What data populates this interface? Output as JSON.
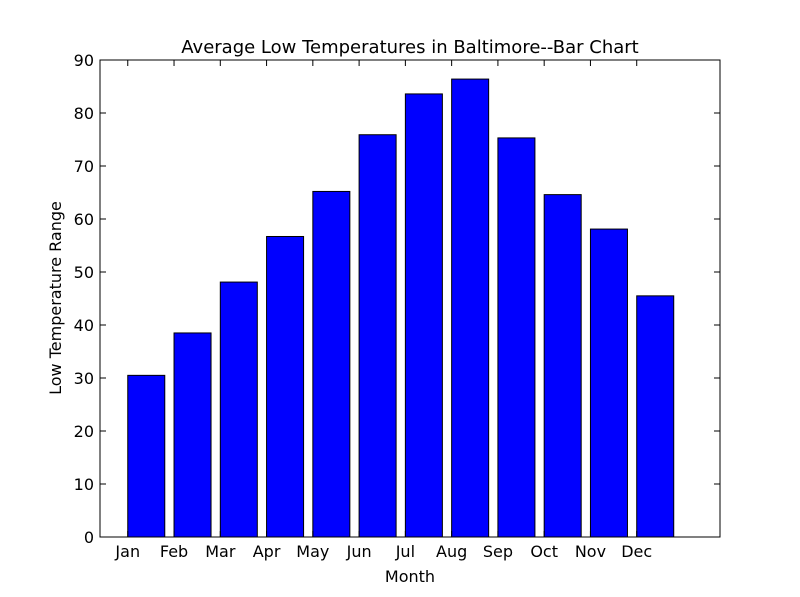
{
  "chart_data": {
    "type": "bar",
    "title": "Average Low Temperatures in Baltimore--Bar Chart",
    "xlabel": "Month",
    "ylabel": "Low Temperature Range",
    "categories": [
      "Jan",
      "Feb",
      "Mar",
      "Apr",
      "May",
      "Jun",
      "Jul",
      "Aug",
      "Sep",
      "Oct",
      "Nov",
      "Dec"
    ],
    "values": [
      30.5,
      38.5,
      48.1,
      56.7,
      65.2,
      75.9,
      83.6,
      86.4,
      75.3,
      64.6,
      58.1,
      45.5
    ],
    "ylim": [
      0,
      90
    ],
    "yticks": [
      "0",
      "10",
      "20",
      "30",
      "40",
      "50",
      "60",
      "70",
      "80",
      "90"
    ],
    "grid": false,
    "bar_color": "#0000ff",
    "edge_color": "#000000"
  }
}
